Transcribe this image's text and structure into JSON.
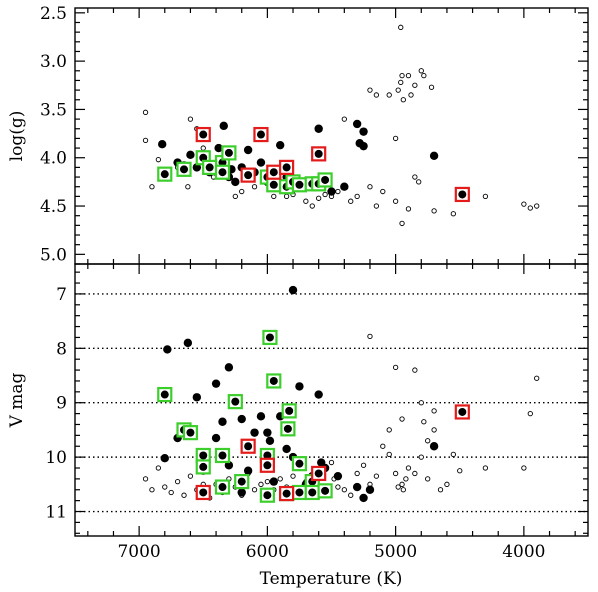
{
  "chart_data": [
    {
      "type": "scatter",
      "ylabel": "log(g)",
      "xlim": [
        7500,
        3500
      ],
      "ylim": [
        5.1,
        2.45
      ],
      "y_ticks": [
        "2.5",
        "3.0",
        "3.5",
        "4.0",
        "4.5",
        "5.0"
      ],
      "y_tick_values": [
        2.5,
        3.0,
        3.5,
        4.0,
        4.5,
        5.0
      ],
      "grid": false,
      "series": [
        {
          "marker": "open-circle",
          "points": [
            [
              6950,
              3.53
            ],
            [
              6950,
              3.82
            ],
            [
              6900,
              4.3
            ],
            [
              6850,
              4.02
            ],
            [
              6780,
              4.22
            ],
            [
              6700,
              4.1
            ],
            [
              6620,
              4.3
            ],
            [
              6600,
              3.6
            ],
            [
              6550,
              3.7
            ],
            [
              6500,
              3.9
            ],
            [
              6450,
              4.05
            ],
            [
              6420,
              4.2
            ],
            [
              6300,
              4.15
            ],
            [
              6250,
              4.4
            ],
            [
              6200,
              4.35
            ],
            [
              6100,
              4.3
            ],
            [
              5950,
              4.4
            ],
            [
              5900,
              4.3
            ],
            [
              5850,
              4.4
            ],
            [
              5800,
              4.38
            ],
            [
              5700,
              4.45
            ],
            [
              5650,
              4.5
            ],
            [
              5600,
              4.42
            ],
            [
              5550,
              4.38
            ],
            [
              5500,
              4.4
            ],
            [
              5450,
              4.35
            ],
            [
              5400,
              3.6
            ],
            [
              5350,
              4.45
            ],
            [
              5300,
              4.4
            ],
            [
              5200,
              4.3
            ],
            [
              5150,
              4.5
            ],
            [
              5100,
              4.35
            ],
            [
              5000,
              4.45
            ],
            [
              5000,
              3.8
            ],
            [
              4900,
              4.53
            ],
            [
              4850,
              4.2
            ],
            [
              4820,
              4.25
            ],
            [
              4950,
              4.68
            ],
            [
              5200,
              3.3
            ],
            [
              5150,
              3.35
            ],
            [
              5050,
              3.35
            ],
            [
              4980,
              3.3
            ],
            [
              4960,
              3.22
            ],
            [
              4950,
              3.15
            ],
            [
              4940,
              3.4
            ],
            [
              4900,
              3.15
            ],
            [
              4880,
              3.35
            ],
            [
              4850,
              3.25
            ],
            [
              4800,
              3.1
            ],
            [
              4780,
              3.15
            ],
            [
              4720,
              3.27
            ],
            [
              4960,
              2.65
            ],
            [
              4700,
              4.55
            ],
            [
              4550,
              4.58
            ],
            [
              4300,
              4.4
            ],
            [
              4000,
              4.48
            ],
            [
              3950,
              4.52
            ],
            [
              3900,
              4.5
            ]
          ]
        },
        {
          "marker": "filled-circle",
          "points": [
            [
              6820,
              3.86
            ],
            [
              6700,
              4.05
            ],
            [
              6650,
              4.08
            ],
            [
              6600,
              3.97
            ],
            [
              6550,
              4.1
            ],
            [
              6500,
              4.0
            ],
            [
              6450,
              4.15
            ],
            [
              6400,
              4.08
            ],
            [
              6380,
              3.9
            ],
            [
              6340,
              3.67
            ],
            [
              6300,
              4.2
            ],
            [
              6280,
              4.12
            ],
            [
              6250,
              4.25
            ],
            [
              6200,
              4.1
            ],
            [
              6150,
              3.92
            ],
            [
              6100,
              4.15
            ],
            [
              6050,
              4.05
            ],
            [
              6000,
              4.25
            ],
            [
              5950,
              4.18
            ],
            [
              5900,
              3.87
            ],
            [
              5850,
              4.2
            ],
            [
              5800,
              4.3
            ],
            [
              5750,
              4.25
            ],
            [
              5650,
              4.28
            ],
            [
              5600,
              3.7
            ],
            [
              5300,
              3.65
            ],
            [
              5250,
              3.73
            ],
            [
              5280,
              3.85
            ],
            [
              5250,
              3.88
            ],
            [
              4700,
              3.98
            ],
            [
              5500,
              4.35
            ],
            [
              5400,
              4.3
            ]
          ]
        },
        {
          "marker": "green-square",
          "points": [
            [
              6800,
              4.17
            ],
            [
              6650,
              4.12
            ],
            [
              6500,
              4.0
            ],
            [
              6350,
              4.05
            ],
            [
              6300,
              3.95
            ],
            [
              6000,
              4.2
            ],
            [
              5950,
              4.28
            ],
            [
              5850,
              4.3
            ],
            [
              5800,
              4.25
            ],
            [
              5750,
              4.28
            ],
            [
              5650,
              4.27
            ],
            [
              5600,
              4.27
            ],
            [
              5550,
              4.23
            ],
            [
              6450,
              4.1
            ],
            [
              6350,
              4.15
            ]
          ]
        },
        {
          "marker": "red-square",
          "points": [
            [
              6500,
              3.76
            ],
            [
              6050,
              3.76
            ],
            [
              5600,
              3.96
            ],
            [
              5950,
              4.15
            ],
            [
              5850,
              4.1
            ],
            [
              6150,
              4.18
            ],
            [
              4480,
              4.38
            ]
          ]
        }
      ]
    },
    {
      "type": "scatter",
      "xlabel": "Temperature (K)",
      "ylabel": "V mag",
      "xlim": [
        7500,
        3500
      ],
      "ylim": [
        11.45,
        6.45
      ],
      "x_ticks": [
        "7000",
        "6000",
        "5000",
        "4000"
      ],
      "x_tick_values": [
        7000,
        6000,
        5000,
        4000
      ],
      "y_ticks": [
        "7",
        "8",
        "9",
        "10",
        "11"
      ],
      "y_tick_values": [
        7,
        8,
        9,
        10,
        11
      ],
      "grid": "dotted horizontal lines at each y tick",
      "series": [
        {
          "marker": "open-circle",
          "points": [
            [
              6950,
              10.4
            ],
            [
              6900,
              10.6
            ],
            [
              6850,
              10.2
            ],
            [
              6800,
              10.55
            ],
            [
              6750,
              10.65
            ],
            [
              6700,
              10.45
            ],
            [
              6650,
              10.7
            ],
            [
              6600,
              10.35
            ],
            [
              6550,
              10.6
            ],
            [
              6500,
              10.5
            ],
            [
              6450,
              10.75
            ],
            [
              6400,
              10.5
            ],
            [
              6350,
              10.65
            ],
            [
              6300,
              10.4
            ],
            [
              6250,
              10.55
            ],
            [
              6200,
              10.7
            ],
            [
              6150,
              10.3
            ],
            [
              6100,
              10.6
            ],
            [
              6050,
              10.5
            ],
            [
              6000,
              10.45
            ],
            [
              5950,
              10.6
            ],
            [
              5900,
              10.4
            ],
            [
              5850,
              10.55
            ],
            [
              5800,
              10.35
            ],
            [
              5750,
              10.6
            ],
            [
              5700,
              10.45
            ],
            [
              5650,
              10.5
            ],
            [
              5600,
              10.4
            ],
            [
              5550,
              10.6
            ],
            [
              5500,
              10.1
            ],
            [
              5480,
              10.4
            ],
            [
              5450,
              10.55
            ],
            [
              5400,
              10.6
            ],
            [
              5350,
              10.7
            ],
            [
              5300,
              10.3
            ],
            [
              5250,
              10.15
            ],
            [
              5200,
              10.5
            ],
            [
              5150,
              10.35
            ],
            [
              5100,
              9.8
            ],
            [
              5050,
              9.95
            ],
            [
              5000,
              10.3
            ],
            [
              4980,
              10.55
            ],
            [
              4950,
              10.5
            ],
            [
              4940,
              10.6
            ],
            [
              4920,
              10.4
            ],
            [
              4900,
              10.2
            ],
            [
              4850,
              10.3
            ],
            [
              4800,
              10.0
            ],
            [
              4780,
              9.35
            ],
            [
              4750,
              10.4
            ],
            [
              4700,
              9.5
            ],
            [
              4650,
              10.6
            ],
            [
              4600,
              10.5
            ],
            [
              4550,
              9.95
            ],
            [
              4500,
              10.25
            ],
            [
              4300,
              10.2
            ],
            [
              4000,
              10.2
            ],
            [
              3950,
              9.2
            ],
            [
              3900,
              8.55
            ],
            [
              5000,
              8.35
            ],
            [
              4950,
              9.3
            ],
            [
              4800,
              9.0
            ],
            [
              4850,
              8.4
            ],
            [
              5200,
              7.78
            ],
            [
              5050,
              9.5
            ],
            [
              4750,
              9.7
            ],
            [
              4700,
              9.15
            ]
          ]
        },
        {
          "marker": "filled-circle",
          "points": [
            [
              5800,
              6.93
            ],
            [
              6620,
              7.9
            ],
            [
              6780,
              8.02
            ],
            [
              6550,
              8.9
            ],
            [
              6400,
              8.65
            ],
            [
              6300,
              8.35
            ],
            [
              6350,
              9.35
            ],
            [
              6400,
              9.65
            ],
            [
              6250,
              9.0
            ],
            [
              6200,
              9.3
            ],
            [
              6100,
              9.55
            ],
            [
              6050,
              9.25
            ],
            [
              6020,
              10.05
            ],
            [
              6000,
              9.55
            ],
            [
              5980,
              9.7
            ],
            [
              5900,
              9.25
            ],
            [
              5850,
              9.85
            ],
            [
              5800,
              10.0
            ],
            [
              5750,
              8.7
            ],
            [
              5600,
              8.85
            ],
            [
              5580,
              10.1
            ],
            [
              5550,
              10.2
            ],
            [
              5450,
              10.35
            ],
            [
              5300,
              10.55
            ],
            [
              5250,
              10.75
            ],
            [
              5200,
              10.6
            ],
            [
              4700,
              9.8
            ],
            [
              6800,
              10.02
            ],
            [
              6700,
              9.65
            ],
            [
              6500,
              10.25
            ],
            [
              6480,
              10.65
            ],
            [
              6300,
              10.15
            ],
            [
              6150,
              10.25
            ],
            [
              5950,
              10.45
            ],
            [
              5700,
              10.5
            ],
            [
              5650,
              10.35
            ],
            [
              6200,
              10.65
            ]
          ]
        },
        {
          "marker": "green-square",
          "points": [
            [
              6800,
              8.85
            ],
            [
              5980,
              7.8
            ],
            [
              5950,
              8.6
            ],
            [
              6250,
              8.98
            ],
            [
              5830,
              9.15
            ],
            [
              5840,
              9.48
            ],
            [
              6650,
              9.5
            ],
            [
              6600,
              9.55
            ],
            [
              6500,
              9.97
            ],
            [
              6350,
              9.97
            ],
            [
              6000,
              9.97
            ],
            [
              5750,
              10.12
            ],
            [
              5650,
              10.45
            ],
            [
              6000,
              10.7
            ],
            [
              5850,
              10.67
            ],
            [
              5750,
              10.65
            ],
            [
              5650,
              10.65
            ],
            [
              5550,
              10.62
            ],
            [
              6350,
              10.55
            ],
            [
              6500,
              10.18
            ],
            [
              6200,
              10.45
            ]
          ]
        },
        {
          "marker": "red-square",
          "points": [
            [
              6150,
              9.8
            ],
            [
              6000,
              10.15
            ],
            [
              6500,
              10.65
            ],
            [
              5850,
              10.67
            ],
            [
              5600,
              10.3
            ],
            [
              4480,
              9.17
            ]
          ]
        }
      ]
    }
  ]
}
